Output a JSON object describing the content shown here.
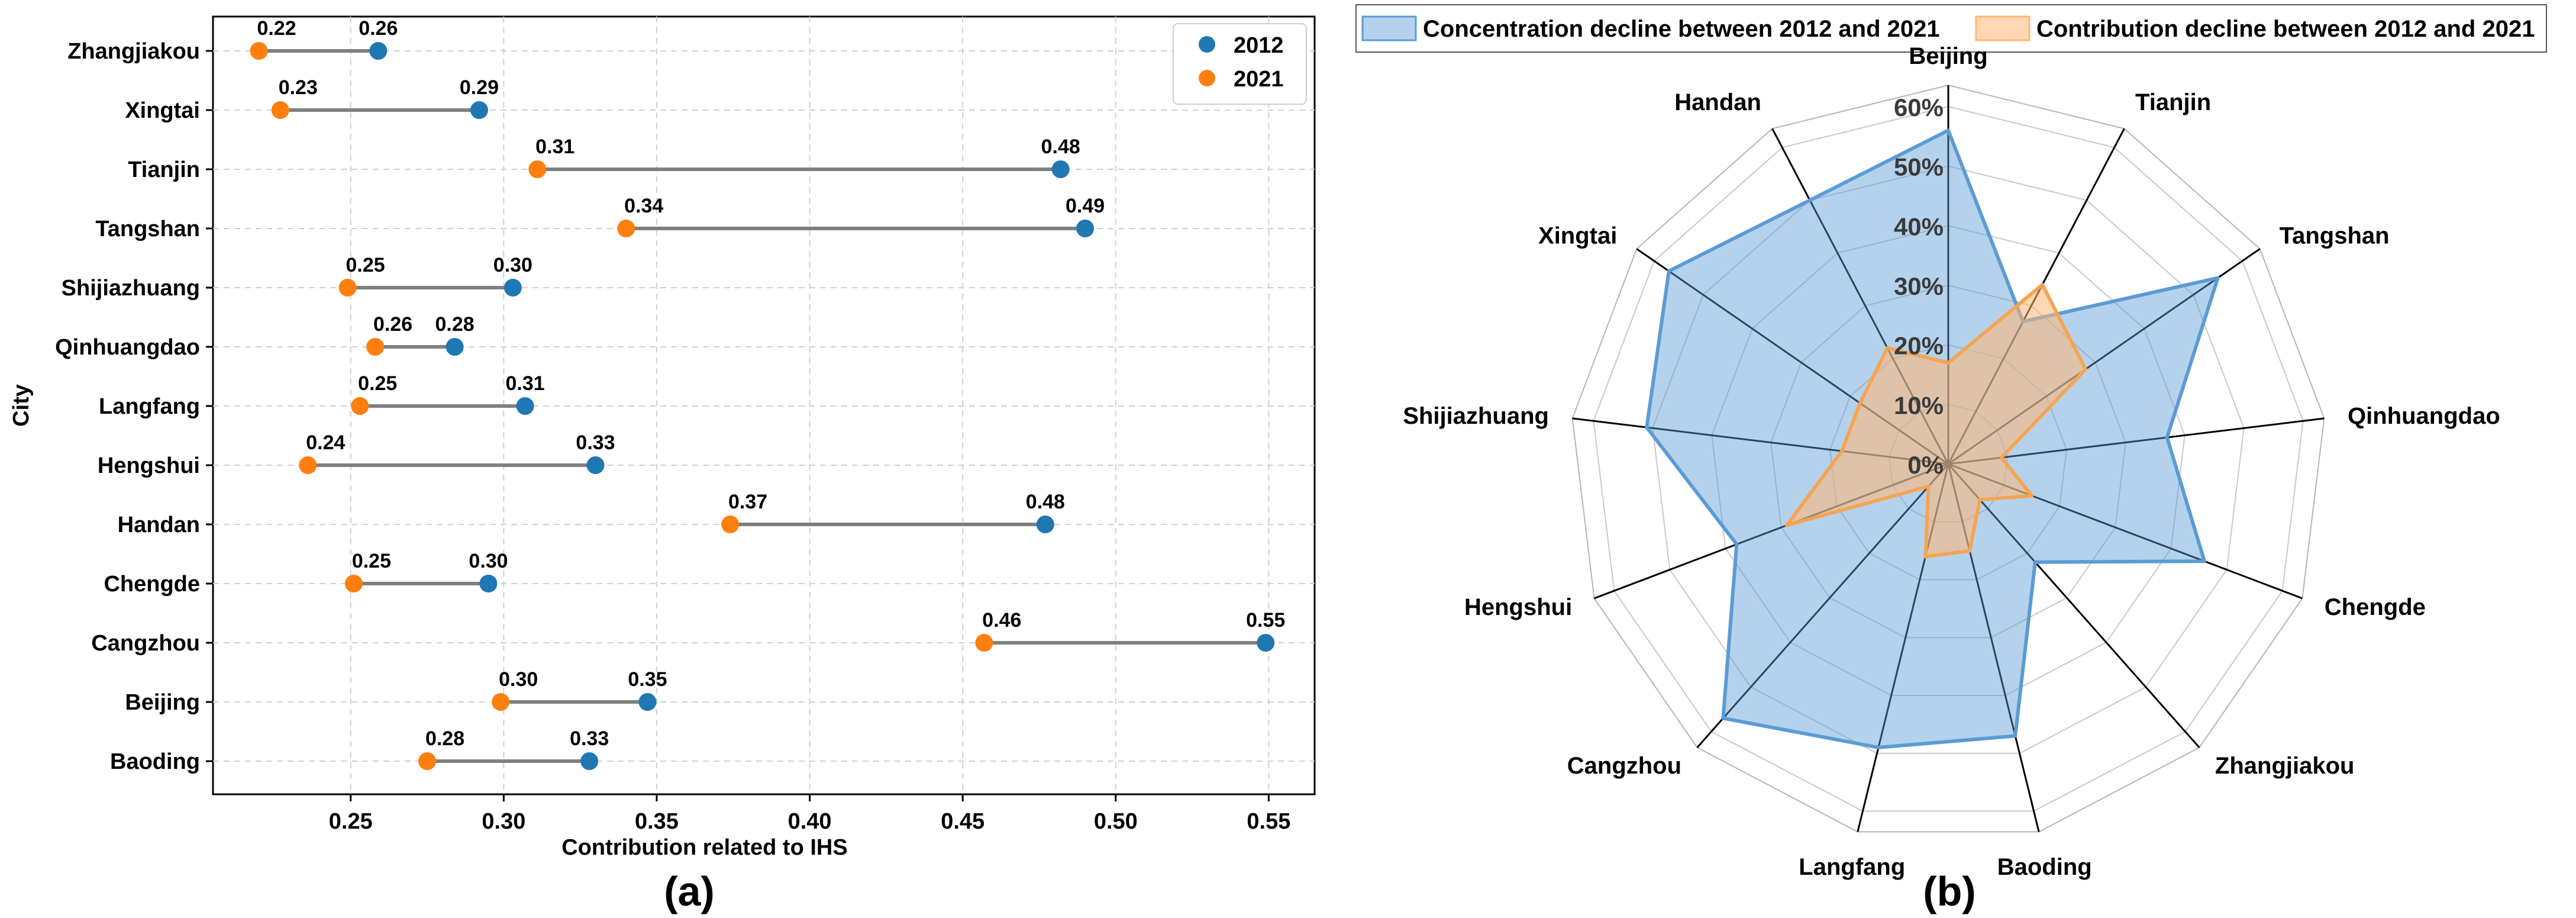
{
  "colors": {
    "c2012": "#1f77b4",
    "c2021": "#ff7f0e",
    "line": "#7f7f7f",
    "radar_blue_fill": "#5b9bd5",
    "radar_orange_fill": "#ffb774"
  },
  "chart_data": [
    {
      "type": "dumbbell",
      "panel_label": "(a)",
      "xlabel": "Contribution related to IHS",
      "ylabel": "City",
      "xlim": [
        0.205,
        0.565
      ],
      "xticks": [
        0.25,
        0.3,
        0.35,
        0.4,
        0.45,
        0.5,
        0.55
      ],
      "xtick_labels": [
        "0.25",
        "0.30",
        "0.35",
        "0.40",
        "0.45",
        "0.50",
        "0.55"
      ],
      "grid": true,
      "legend_position": "top-right",
      "series": [
        {
          "name": "2012"
        },
        {
          "name": "2021"
        }
      ],
      "rows": [
        {
          "city": "Zhangjiakou",
          "v2012": 0.259,
          "v2021": 0.22,
          "l2012": "0.26",
          "l2021": "0.22"
        },
        {
          "city": "Xingtai",
          "v2012": 0.292,
          "v2021": 0.227,
          "l2012": "0.29",
          "l2021": "0.23"
        },
        {
          "city": "Tianjin",
          "v2012": 0.482,
          "v2021": 0.311,
          "l2012": "0.48",
          "l2021": "0.31"
        },
        {
          "city": "Tangshan",
          "v2012": 0.49,
          "v2021": 0.34,
          "l2012": "0.49",
          "l2021": "0.34"
        },
        {
          "city": "Shijiazhuang",
          "v2012": 0.303,
          "v2021": 0.249,
          "l2012": "0.30",
          "l2021": "0.25"
        },
        {
          "city": "Qinhuangdao",
          "v2012": 0.284,
          "v2021": 0.258,
          "l2012": "0.28",
          "l2021": "0.26"
        },
        {
          "city": "Langfang",
          "v2012": 0.307,
          "v2021": 0.253,
          "l2012": "0.31",
          "l2021": "0.25"
        },
        {
          "city": "Hengshui",
          "v2012": 0.33,
          "v2021": 0.236,
          "l2012": "0.33",
          "l2021": "0.24"
        },
        {
          "city": "Handan",
          "v2012": 0.477,
          "v2021": 0.374,
          "l2012": "0.48",
          "l2021": "0.37"
        },
        {
          "city": "Chengde",
          "v2012": 0.295,
          "v2021": 0.251,
          "l2012": "0.30",
          "l2021": "0.25"
        },
        {
          "city": "Cangzhou",
          "v2012": 0.549,
          "v2021": 0.457,
          "l2012": "0.55",
          "l2021": "0.46"
        },
        {
          "city": "Beijing",
          "v2012": 0.347,
          "v2021": 0.299,
          "l2012": "0.35",
          "l2021": "0.30"
        },
        {
          "city": "Baoding",
          "v2012": 0.328,
          "v2021": 0.275,
          "l2012": "0.33",
          "l2021": "0.28"
        }
      ]
    },
    {
      "type": "radar",
      "panel_label": "(b)",
      "rmax": 0.6,
      "rticks": [
        0,
        0.1,
        0.2,
        0.3,
        0.4,
        0.5,
        0.6
      ],
      "rtick_labels": [
        "0%",
        "10%",
        "20%",
        "30%",
        "40%",
        "50%",
        "60%"
      ],
      "legend_position": "top",
      "axes": [
        "Beijing",
        "Tianjin",
        "Tangshan",
        "Qinhuangdao",
        "Chengde",
        "Zhangjiakou",
        "Baoding",
        "Langfang",
        "Cangzhou",
        "Hengshui",
        "Shijiazhuang",
        "Xingtai",
        "Handan"
      ],
      "series": [
        {
          "name": "Concentration decline between 2012 and 2021",
          "values": [
            0.56,
            0.27,
            0.55,
            0.37,
            0.46,
            0.22,
            0.47,
            0.49,
            0.57,
            0.38,
            0.51,
            0.57,
            0.5
          ]
        },
        {
          "name": "Contribution decline between 2012 and 2021",
          "values": [
            0.17,
            0.34,
            0.28,
            0.09,
            0.15,
            0.08,
            0.15,
            0.16,
            0.05,
            0.29,
            0.18,
            0.18,
            0.22
          ]
        }
      ]
    }
  ]
}
